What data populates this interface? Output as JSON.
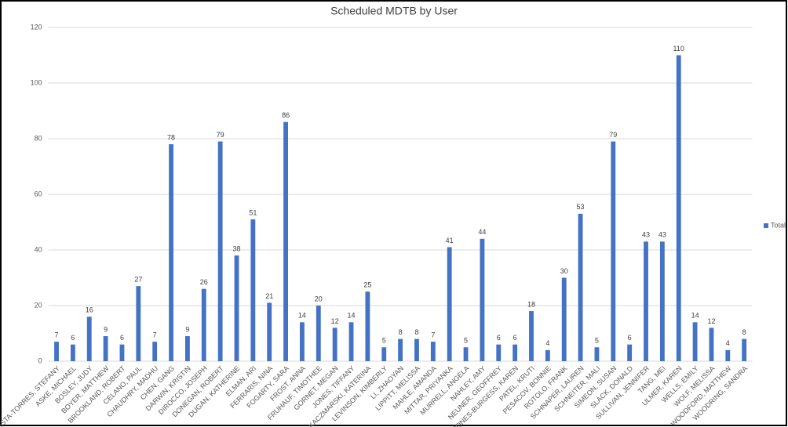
{
  "chart_data": {
    "type": "bar",
    "title": "Scheduled MDTB by User",
    "categories": [
      "ACOSTA-TORRES, STEFANY",
      "ASKE, MICHAEL",
      "BOSLEY, JUDY",
      "BOYER, MATTHEW",
      "BROOKLAND, ROBERT",
      "CELANO, PAUL",
      "CHAUDHRY, MADHU",
      "CHEN, GANG",
      "DARWIN, KRISTIN",
      "DIROCCO, JOSEPH",
      "DONEGAN, ROBERT",
      "DUGAN, KATHERINE",
      "ELMAN, ARI",
      "FERRARIS, NINA",
      "FOGARTY, SARA",
      "FROST, ANNA",
      "FRUHAUF, TIMOTHEE",
      "GORNET, MEGAN",
      "JONES, TIFFANY",
      "KACZMARSKI, KATERINA",
      "LEVINSON, KIMBERLY",
      "LI, ZHAOYAN",
      "LIPPITT, MELISSA",
      "MAHLE, AMANDA",
      "MITTAR, PRIYANKA",
      "MURRELL, ANGELA",
      "NAHLEY, AMY",
      "NEUNER, GEOFFREY",
      "OAKJONES-BURGESS, KAREN",
      "PATEL, KRUTI",
      "PESACOV, BONNIE",
      "ROTOLO, FRANK",
      "SCHNAPER, LAUREN",
      "SCHNEITER, MALI",
      "SIMEON, SUSAN",
      "SLACK, DONALD",
      "SULLIVAN, JENNIFER",
      "TANG, MEI",
      "ULMER, KAREN",
      "WELLS, EMILY",
      "WOLF, MELISSA",
      "WOODFORD, MATTHEW",
      "WOODRING, SANDRA"
    ],
    "series": [
      {
        "name": "Total",
        "color": "#4472c4",
        "values": [
          7,
          6,
          16,
          9,
          6,
          27,
          7,
          78,
          9,
          26,
          79,
          38,
          51,
          21,
          86,
          14,
          20,
          12,
          14,
          25,
          5,
          8,
          8,
          7,
          41,
          5,
          44,
          6,
          6,
          18,
          4,
          30,
          53,
          5,
          79,
          6,
          43,
          43,
          110,
          14,
          12,
          4,
          8
        ]
      }
    ],
    "ylim": [
      0,
      120
    ],
    "yticks": [
      0,
      20,
      40,
      60,
      80,
      100,
      120
    ],
    "grid": true,
    "legend": "right"
  }
}
